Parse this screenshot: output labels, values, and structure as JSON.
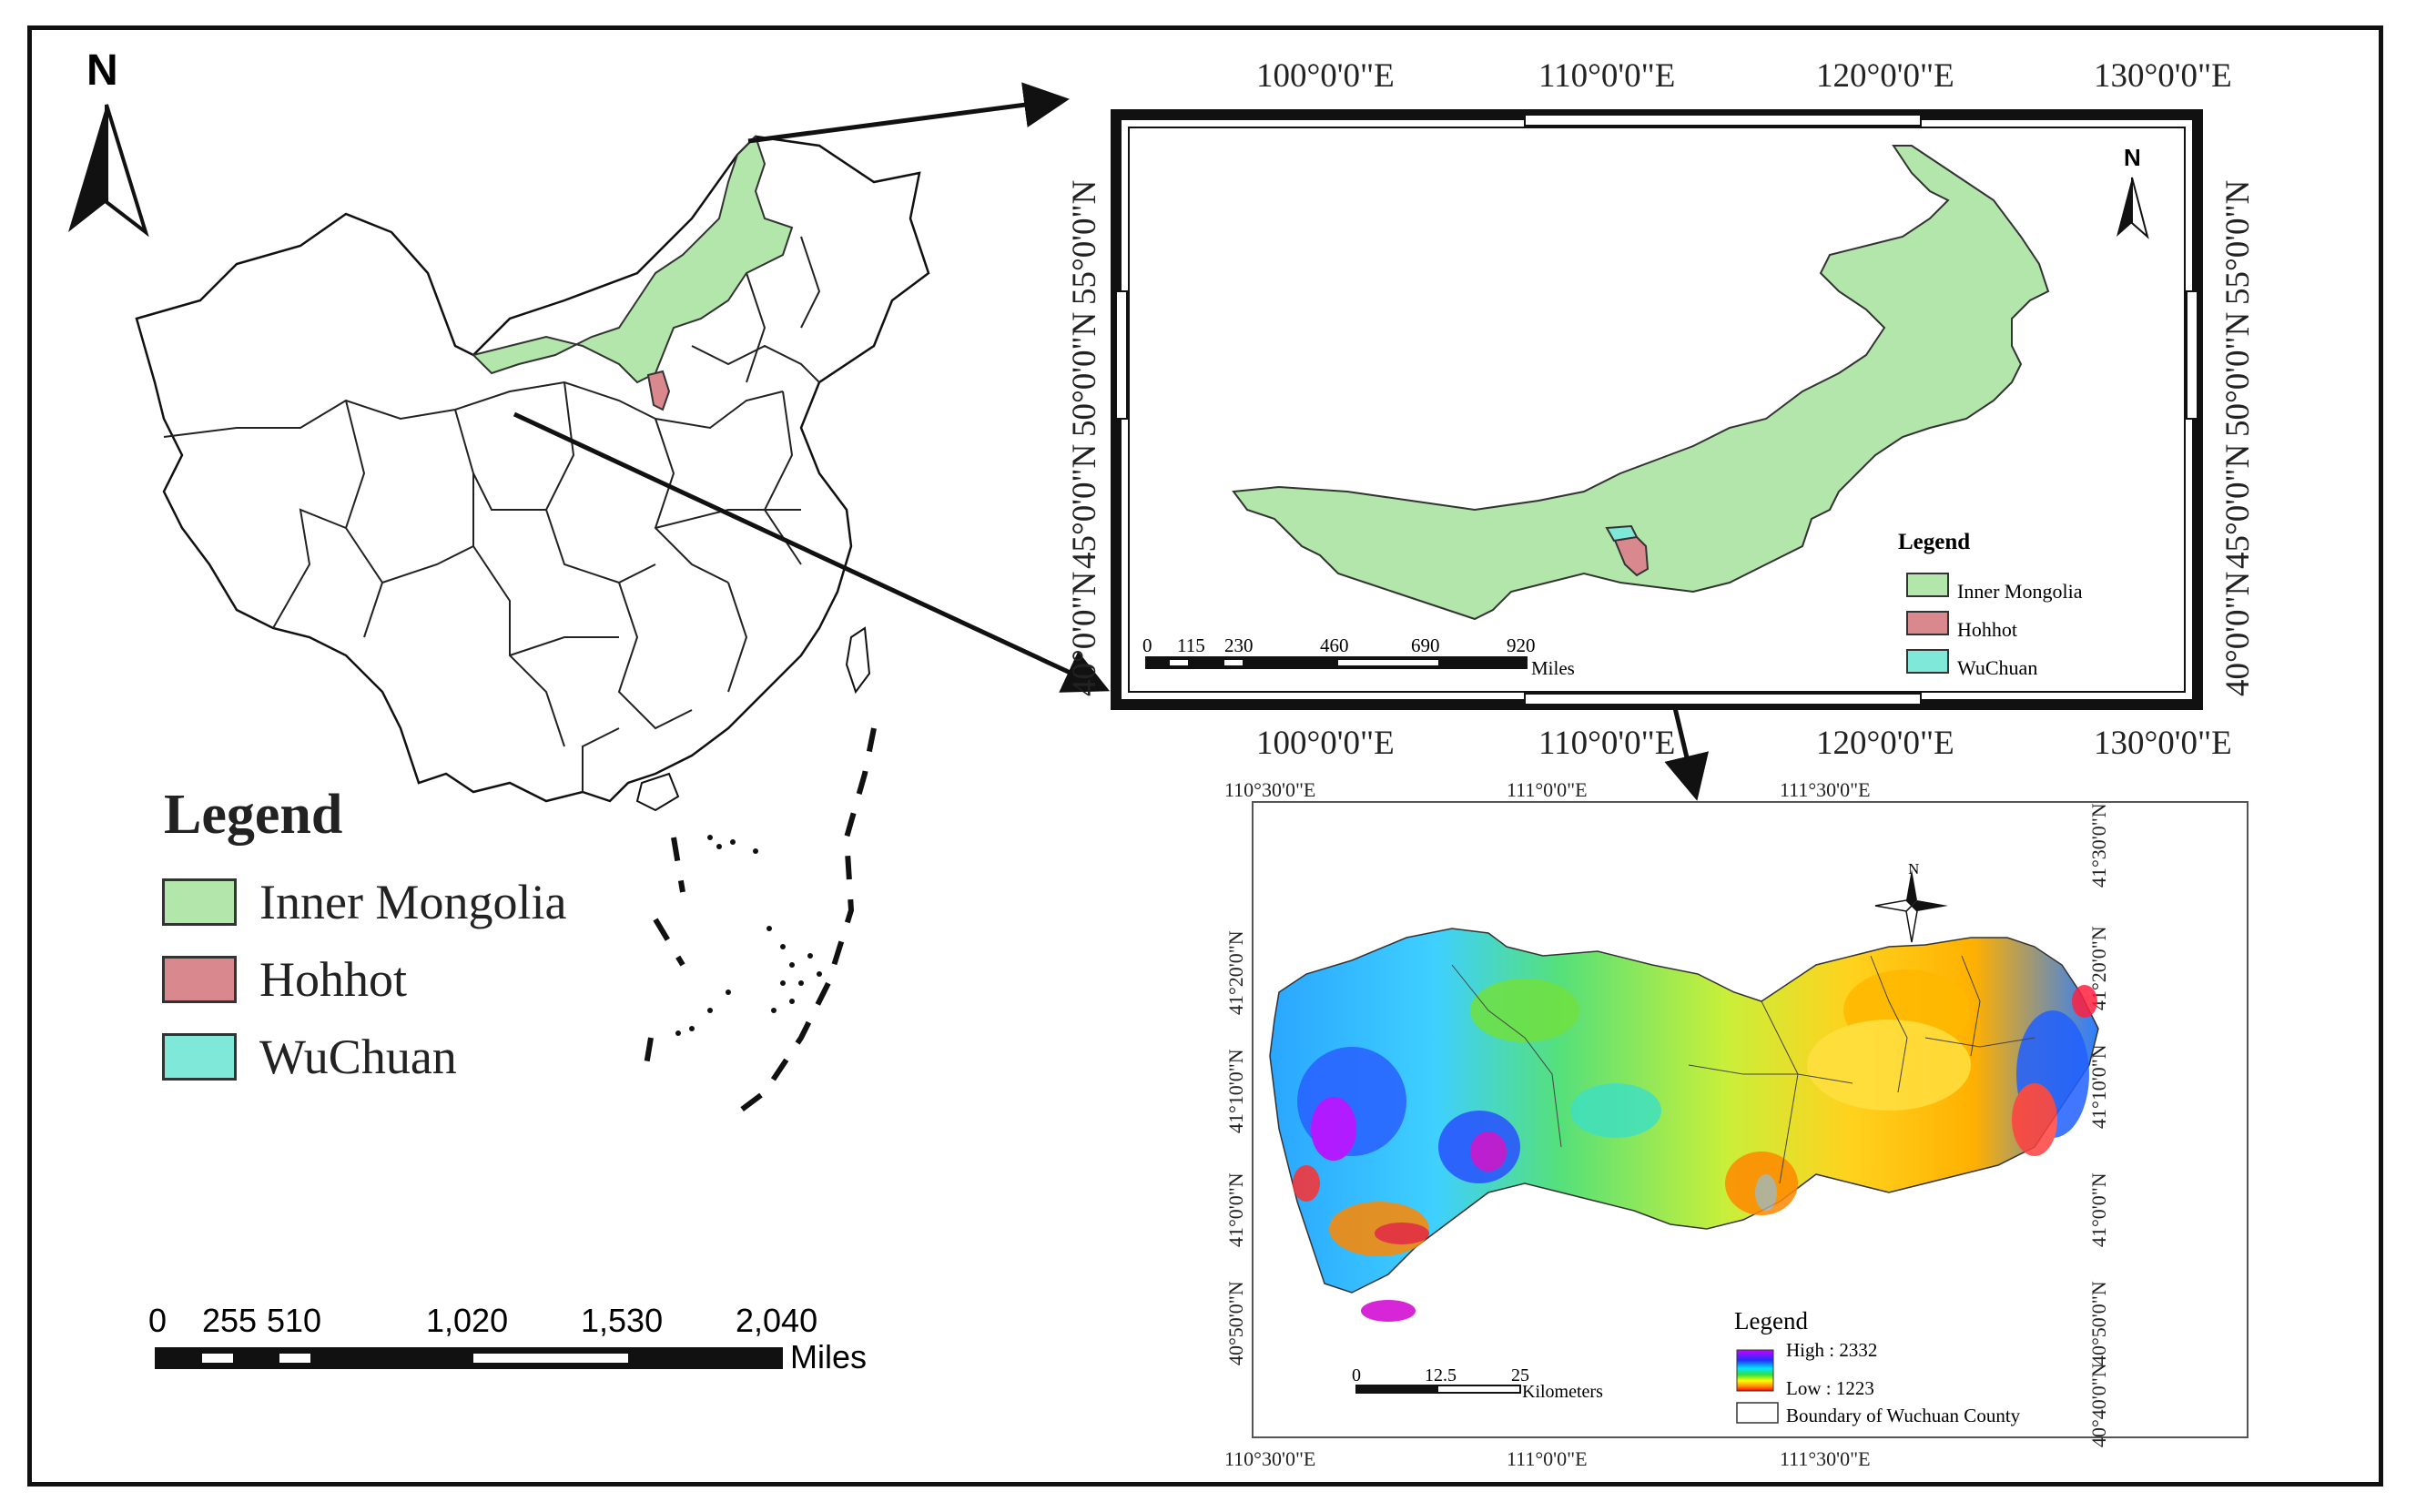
{
  "china_map": {
    "north_label": "N",
    "legend_title": "Legend",
    "legend_items": [
      {
        "label": "Inner Mongolia",
        "color": "#b3e6aa"
      },
      {
        "label": "Hohhot",
        "color": "#d9898d"
      },
      {
        "label": "WuChuan",
        "color": "#7fe8d9"
      }
    ],
    "scale_ticks": [
      "0",
      "255",
      "510",
      "1,020",
      "1,530",
      "2,040"
    ],
    "scale_unit": "Miles"
  },
  "inner_mongolia_map": {
    "north_label": "N",
    "top_lon_labels": [
      "100°0'0\"E",
      "110°0'0\"E",
      "120°0'0\"E",
      "130°0'0\"E"
    ],
    "bottom_lon_labels": [
      "100°0'0\"E",
      "110°0'0\"E",
      "120°0'0\"E",
      "130°0'0\"E"
    ],
    "left_lat_labels": [
      "55°0'0\"N",
      "50°0'0\"N",
      "45°0'0\"N",
      "40°0'0\"N"
    ],
    "right_lat_labels": [
      "55°0'0\"N",
      "50°0'0\"N",
      "45°0'0\"N",
      "40°0'0\"N"
    ],
    "legend_title": "Legend",
    "legend_items": [
      {
        "label": "Inner Mongolia",
        "color": "#b3e6aa"
      },
      {
        "label": "Hohhot",
        "color": "#d9898d"
      },
      {
        "label": "WuChuan",
        "color": "#7fe8d9"
      }
    ],
    "scale_ticks": [
      "0",
      "115",
      "230",
      "460",
      "690",
      "920"
    ],
    "scale_unit": "Miles"
  },
  "wuchuan_map": {
    "north_label": "N",
    "top_lon_labels": [
      "110°30'0\"E",
      "111°0'0\"E",
      "111°30'0\"E"
    ],
    "bottom_lon_labels": [
      "110°30'0\"E",
      "111°0'0\"E",
      "111°30'0\"E"
    ],
    "left_lat_labels": [
      "41°20'0\"N",
      "41°10'0\"N",
      "41°0'0\"N",
      "40°50'0\"N"
    ],
    "right_lat_labels": [
      "41°30'0\"N",
      "41°20'0\"N",
      "41°10'0\"N",
      "41°0'0\"N",
      "40°50'0\"N",
      "40°40'0\"N"
    ],
    "legend_title": "Legend",
    "legend_high": "High : 2332",
    "legend_low": "Low : 1223",
    "legend_boundary": "Boundary of Wuchuan County",
    "scale_ticks": [
      "0",
      "12.5",
      "25"
    ],
    "scale_unit": "Kilometers"
  }
}
